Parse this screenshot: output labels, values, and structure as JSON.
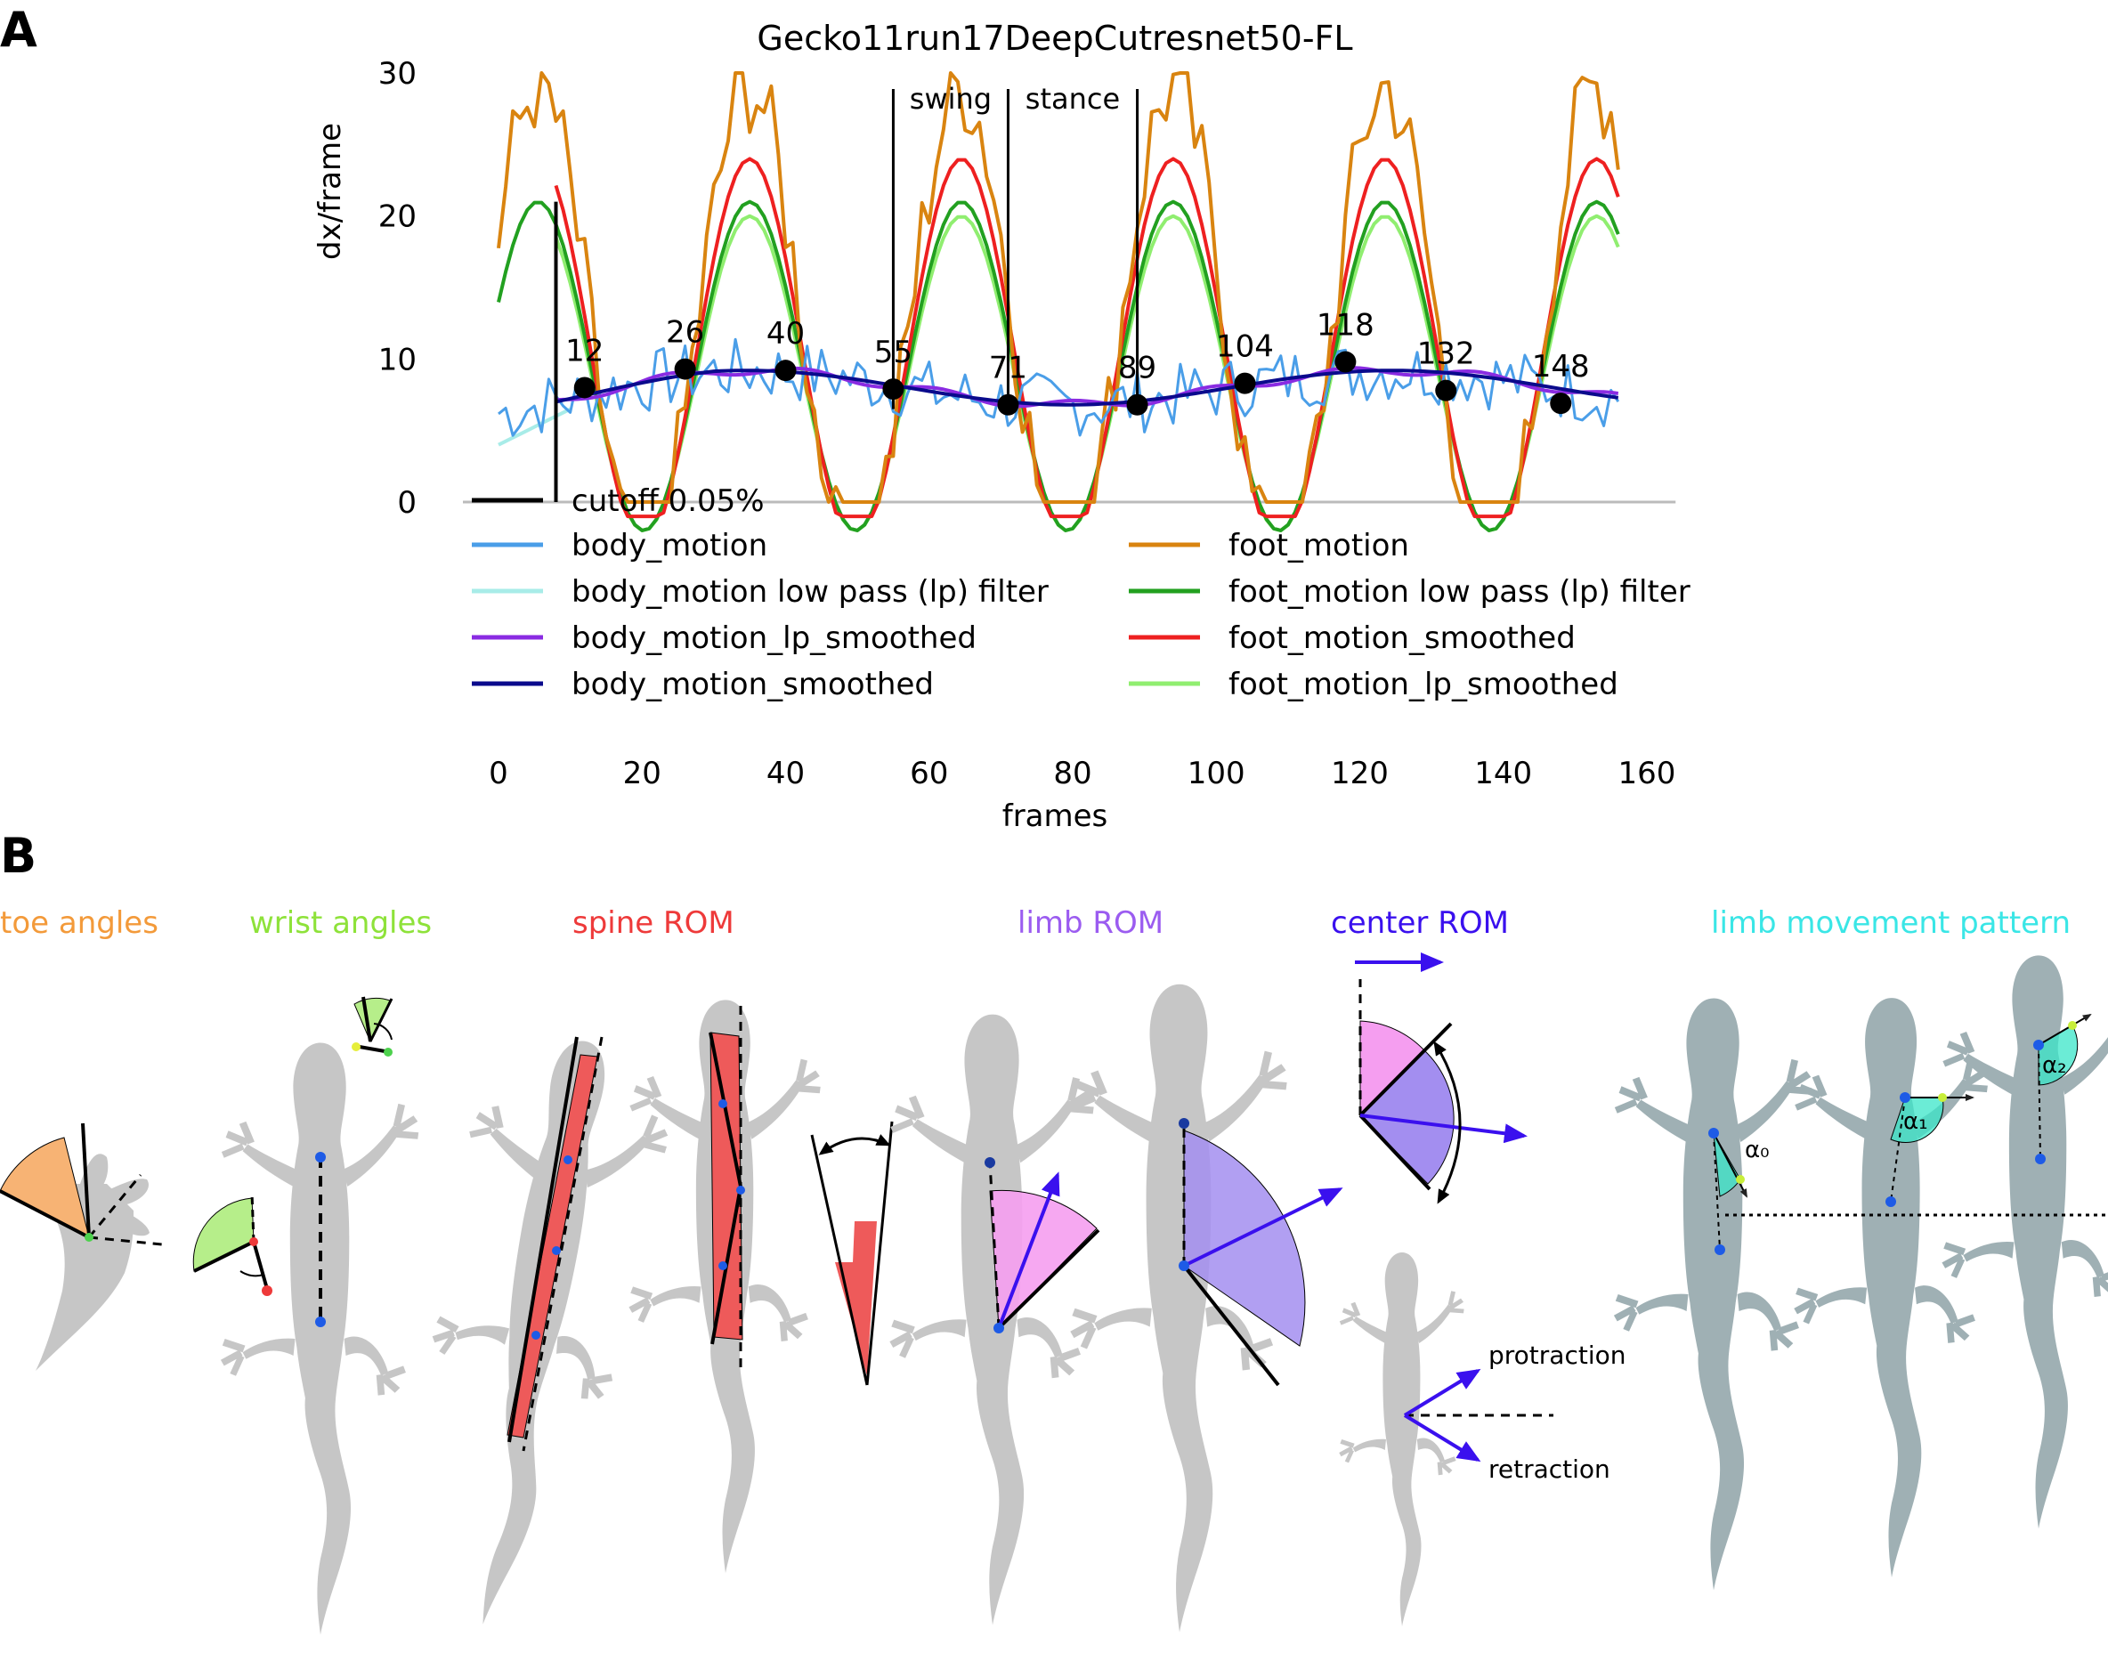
{
  "panel_a": {
    "letter": "A",
    "chart_data": {
      "type": "line",
      "title": "Gecko11run17DeepCutresnet50-FL",
      "xlabel": "frames",
      "ylabel": "dx/frame",
      "xlim": [
        0,
        160
      ],
      "ylim": [
        0,
        30
      ],
      "x_ticks": [
        "0",
        "20",
        "40",
        "60",
        "80",
        "100",
        "120",
        "140",
        "160"
      ],
      "y_ticks": [
        "0",
        "10",
        "20",
        "30"
      ],
      "grid": false,
      "legend_position": "bottom (overlapping lower plot area), two columns",
      "phase_labels": [
        "swing",
        "stance"
      ],
      "phase_markers_x": [
        55,
        71,
        89
      ],
      "cutoff_x": 8,
      "keypoints": [
        {
          "label": "12",
          "x": 12,
          "y": 8.0
        },
        {
          "label": "26",
          "x": 26,
          "y": 9.3
        },
        {
          "label": "40",
          "x": 40,
          "y": 9.2
        },
        {
          "label": "55",
          "x": 55,
          "y": 7.9
        },
        {
          "label": "71",
          "x": 71,
          "y": 6.8
        },
        {
          "label": "89",
          "x": 89,
          "y": 6.8
        },
        {
          "label": "104",
          "x": 104,
          "y": 8.3
        },
        {
          "label": "118",
          "x": 118,
          "y": 9.8
        },
        {
          "label": "132",
          "x": 132,
          "y": 7.8
        },
        {
          "label": "148",
          "x": 148,
          "y": 6.9
        }
      ],
      "series": [
        {
          "name": "cutoff 0.05%",
          "color": "#000000",
          "key": "cutoff"
        },
        {
          "name": "body_motion",
          "color": "#4a9ee8",
          "key": "body"
        },
        {
          "name": "body_motion low pass (lp) filter",
          "color": "#a8ece8",
          "key": "body_lp"
        },
        {
          "name": "body_motion_lp_smoothed",
          "color": "#8a2be2",
          "key": "body_lp_s"
        },
        {
          "name": "body_motion_smoothed",
          "color": "#0a0a8c",
          "key": "body_s"
        },
        {
          "name": "foot_motion",
          "color": "#d98410",
          "key": "foot"
        },
        {
          "name": "foot_motion low pass (lp) filter",
          "color": "#22a020",
          "key": "foot_lp"
        },
        {
          "name": "foot_motion_smoothed",
          "color": "#ee2020",
          "key": "foot_s"
        },
        {
          "name": "foot_motion_lp_smoothed",
          "color": "#90ee70",
          "key": "foot_lp_s"
        }
      ],
      "body_smoothed_anchor_points": [
        [
          8,
          7.6
        ],
        [
          20,
          8.8
        ],
        [
          33,
          9.3
        ],
        [
          45,
          8.8
        ],
        [
          57,
          8.0
        ],
        [
          70,
          6.9
        ],
        [
          80,
          6.5
        ],
        [
          90,
          6.9
        ],
        [
          102,
          8.0
        ],
        [
          118,
          9.7
        ],
        [
          132,
          7.9
        ],
        [
          145,
          7.0
        ],
        [
          156,
          6.2
        ]
      ],
      "foot_peak_points": [
        [
          5,
          29.5
        ],
        [
          34,
          30
        ],
        [
          63,
          26
        ],
        [
          96,
          29.5
        ],
        [
          124,
          29
        ]
      ],
      "foot_lp_peak_points": [
        [
          6,
          21
        ],
        [
          34,
          21.3
        ],
        [
          63,
          19.5
        ],
        [
          95,
          19.8
        ],
        [
          124,
          20.3
        ]
      ]
    }
  },
  "panel_b": {
    "letter": "B",
    "labels": {
      "toe": "toe angles",
      "wrist": "wrist angles",
      "spine": "spine ROM",
      "limb": "limb ROM",
      "center": "center ROM",
      "pattern": "limb movement pattern",
      "protraction": "protraction",
      "retraction": "retraction",
      "alpha0": "α₀",
      "alpha1": "α₁",
      "alpha2": "α₂"
    },
    "colors": {
      "toe": "#f39a3a",
      "wrist": "#8ee23a",
      "spine": "#ee3a3a",
      "limb": "#9b5cf0",
      "center": "#3a10ee",
      "pattern": "#3ae6e6",
      "gecko": "#c6c6c6",
      "gecko_pattern": "#9fb0b4"
    }
  }
}
